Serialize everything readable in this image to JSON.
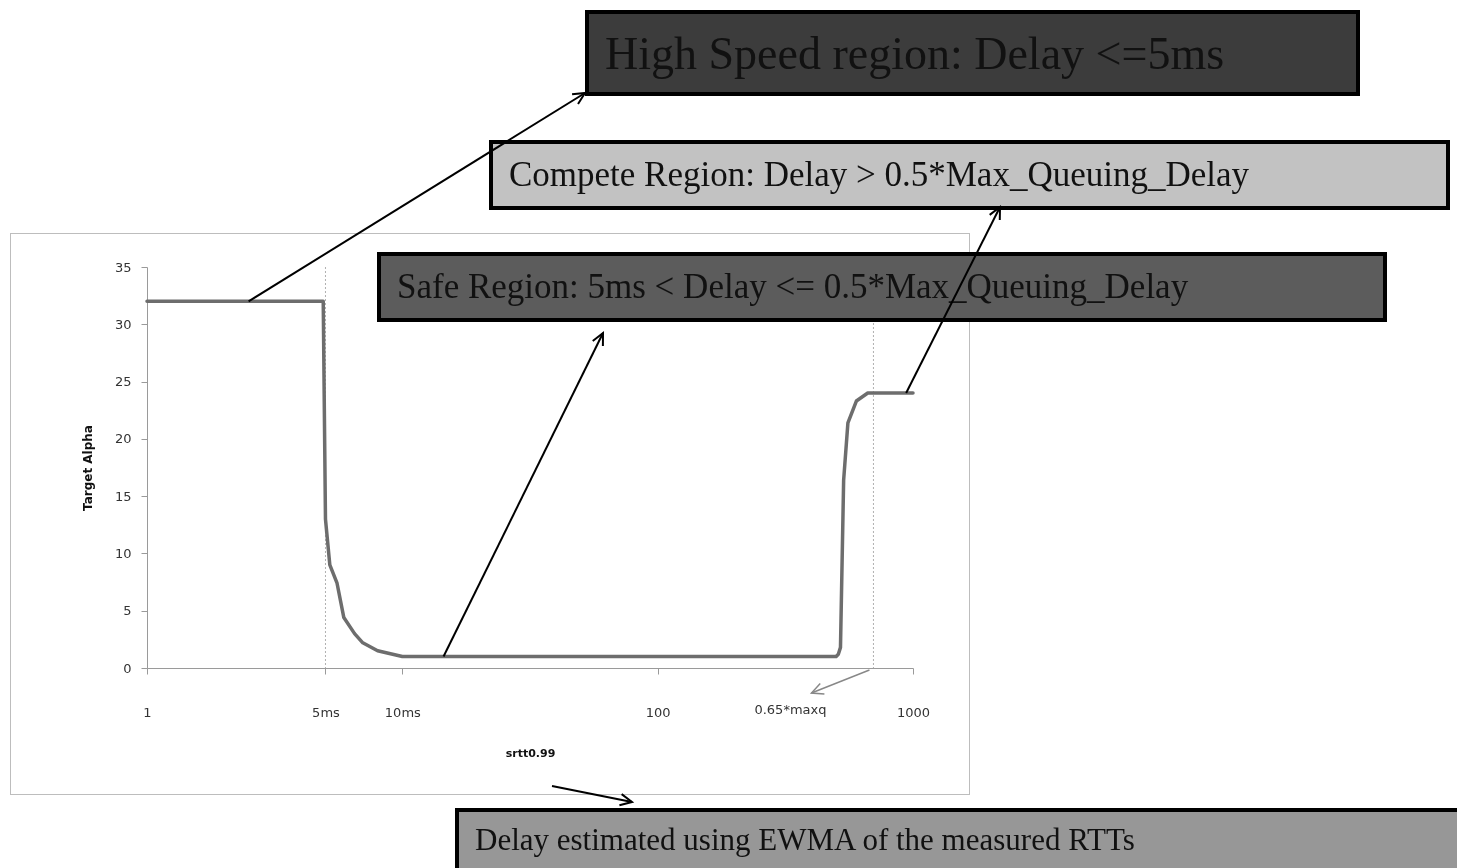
{
  "chart_data": {
    "type": "line",
    "xlabel": "srtt0.99",
    "ylabel": "Target Alpha",
    "log": "x",
    "xlim": [
      1,
      1000
    ],
    "ylim": [
      0,
      35
    ],
    "xticks": [
      1,
      {
        "value": 5,
        "label": "5ms"
      },
      {
        "value": 10,
        "label": "10ms"
      },
      100,
      1000
    ],
    "yticks": [
      0,
      5,
      10,
      15,
      20,
      25,
      30,
      35
    ],
    "marker": "none",
    "line_style": "solid",
    "series": [
      {
        "color": "#6d6d6d",
        "x": [
          1,
          4.9,
          5.0,
          5.2,
          5.55,
          5.9,
          6.5,
          7.0,
          8.0,
          10,
          500,
          510,
          520,
          535,
          556,
          600,
          665,
          1000
        ],
        "values": [
          32,
          32,
          13,
          9,
          7.4,
          4.4,
          3.0,
          2.2,
          1.5,
          1,
          1,
          1.2,
          1.8,
          16.4,
          21.4,
          23.3,
          24,
          24
        ]
      }
    ],
    "ref_lines": [
      {
        "axis": "x",
        "value": 5,
        "line_style": "dotted",
        "color": "#b0b0b0"
      },
      {
        "axis": "x",
        "value": 700,
        "label": "0.65*maxq",
        "line_style": "dotted",
        "color": "#b0b0b0"
      }
    ],
    "annotations": [
      {
        "text": "High Speed region: Delay <=5ms",
        "x": 2.5,
        "y": 32
      },
      {
        "text": "Compete Region: Delay > 0.5*Max_Queuing_Delay",
        "x": 940,
        "y": 24
      },
      {
        "text": "Safe Region: 5ms < Delay <= 0.5*Max_Queuing_Delay",
        "x": 14.5,
        "y": 1
      },
      "Delay estimated using EWMA of the measured RTTs"
    ]
  }
}
